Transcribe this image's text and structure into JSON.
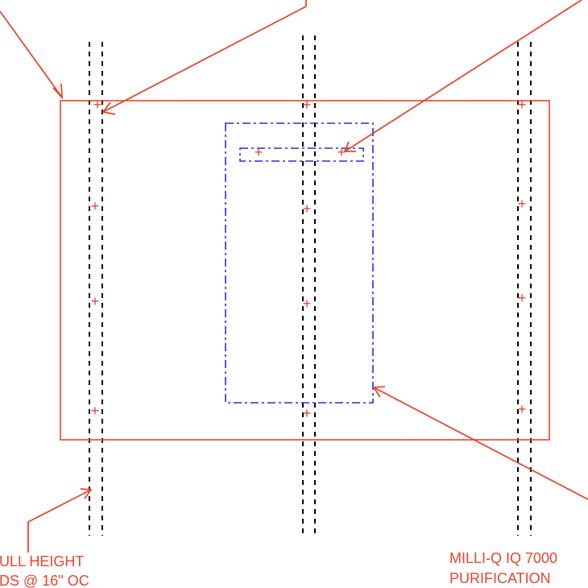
{
  "colors": {
    "panel": "#e8452f",
    "stud": "#000000",
    "equipment": "#2a2ae0",
    "annotation": "#e8452f"
  },
  "annotations": {
    "studs_note": {
      "line1": "ULL HEIGHT",
      "line2": "DS @ 16\" OC"
    },
    "equipment_note": {
      "line1": "MILLI-Q IQ 7000",
      "line2": "PURIFICATION"
    }
  },
  "markers": {
    "red_symbol": "+",
    "blue_symbol": "+"
  }
}
